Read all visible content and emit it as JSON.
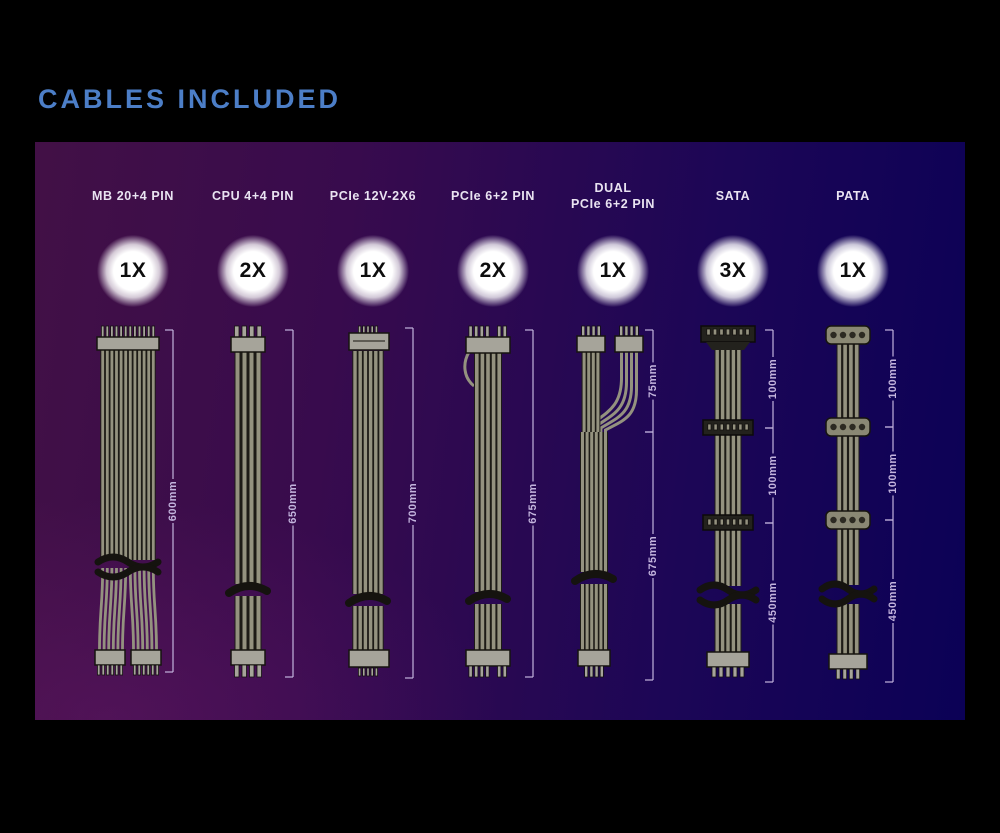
{
  "title": "CABLES INCLUDED",
  "colors": {
    "title_blue": "#4c7ec7",
    "panel_left_purple": "#421046",
    "panel_right_navy": "#0b0156",
    "wire": "#94927f",
    "cable_edge": "#1d1b16",
    "connector": "#a6a49a",
    "connector_dark": "#23221d",
    "tie": "#15130f",
    "measure": "#c3b4dd",
    "header_text": "#e9e3f1",
    "badge_text": "#0d0d0d"
  },
  "columns": [
    {
      "id": "mb-20-4-pin",
      "label_lines": [
        "MB 20+4 PIN"
      ],
      "count": "1X",
      "cable_type": "mb",
      "measurements": [
        {
          "label": "600mm",
          "from": 10,
          "to": 352
        }
      ]
    },
    {
      "id": "cpu-4-4-pin",
      "label_lines": [
        "CPU 4+4 PIN"
      ],
      "count": "2X",
      "cable_type": "cpu",
      "measurements": [
        {
          "label": "650mm",
          "from": 10,
          "to": 357
        }
      ]
    },
    {
      "id": "pcie-12v-2x6",
      "label_lines": [
        "PCIe 12V-2X6"
      ],
      "count": "1X",
      "cable_type": "pcie12v",
      "measurements": [
        {
          "label": "700mm",
          "from": 8,
          "to": 358
        }
      ]
    },
    {
      "id": "pcie-6-2-pin",
      "label_lines": [
        "PCIe 6+2 PIN"
      ],
      "count": "2X",
      "cable_type": "pcie62",
      "measurements": [
        {
          "label": "675mm",
          "from": 10,
          "to": 357
        }
      ]
    },
    {
      "id": "dual-pcie-6-2-pin",
      "label_lines": [
        "DUAL",
        "PCIe 6+2 PIN"
      ],
      "count": "1X",
      "cable_type": "dualpcie",
      "measurements": [
        {
          "label": "75mm",
          "from": 10,
          "to": 112
        },
        {
          "label": "675mm",
          "from": 112,
          "to": 360
        }
      ]
    },
    {
      "id": "sata",
      "label_lines": [
        "SATA"
      ],
      "count": "3X",
      "cable_type": "sata",
      "measurements": [
        {
          "label": "100mm",
          "from": 10,
          "to": 108
        },
        {
          "label": "100mm",
          "from": 108,
          "to": 203
        },
        {
          "label": "450mm",
          "from": 203,
          "to": 362
        }
      ]
    },
    {
      "id": "pata",
      "label_lines": [
        "PATA"
      ],
      "count": "1X",
      "cable_type": "pata",
      "measurements": [
        {
          "label": "100mm",
          "from": 10,
          "to": 107
        },
        {
          "label": "100mm",
          "from": 107,
          "to": 200
        },
        {
          "label": "450mm",
          "from": 200,
          "to": 362
        }
      ]
    }
  ]
}
